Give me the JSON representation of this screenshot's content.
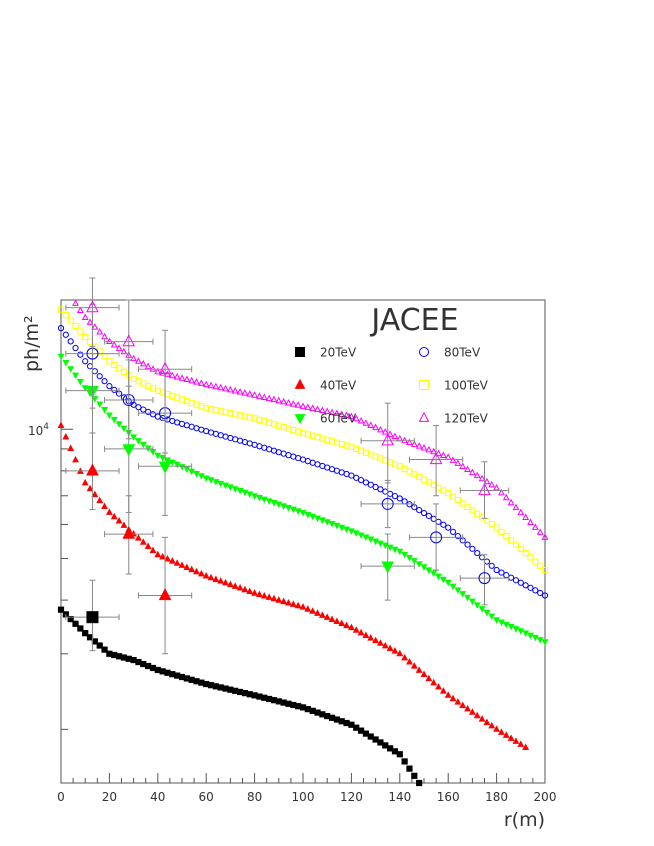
{
  "chart_data": {
    "type": "scatter",
    "title": "JACEE",
    "xlabel": "r(m)",
    "ylabel": "ph/m²",
    "xlim": [
      0,
      200
    ],
    "ylim": [
      1500,
      20000
    ],
    "yscale": "log",
    "x_ticks": [
      0,
      20,
      40,
      60,
      80,
      100,
      120,
      140,
      160,
      180,
      200
    ],
    "x_tick_labels": [
      "0",
      "20",
      "40",
      "60",
      "80",
      "100",
      "120",
      "140",
      "160",
      "180",
      "200"
    ],
    "y_tick_label": {
      "value": 10000,
      "base": "10",
      "exp": "4"
    },
    "legend_position": "top-right",
    "series": [
      {
        "name": "20TeV",
        "marker": "square-filled",
        "color": "#000000",
        "curve": {
          "x": [
            0,
            10,
            20,
            30,
            40,
            60,
            80,
            100,
            120,
            140,
            148
          ],
          "y": [
            3800,
            3350,
            3000,
            2900,
            2750,
            2550,
            2400,
            2250,
            2050,
            1750,
            1500
          ]
        },
        "measurements": [
          {
            "x": 13,
            "y": 3650,
            "xerr": 11,
            "ylo": 3050,
            "yhi": 4450
          }
        ]
      },
      {
        "name": "40TeV",
        "marker": "triangle-up-filled",
        "color": "#ff0000",
        "curve": {
          "x": [
            0,
            10,
            20,
            30,
            40,
            60,
            80,
            100,
            120,
            140,
            160,
            180,
            193
          ],
          "y": [
            10200,
            7500,
            6400,
            5700,
            5100,
            4550,
            4150,
            3850,
            3450,
            3000,
            2400,
            2000,
            1800
          ]
        },
        "measurements": [
          {
            "x": 13,
            "y": 8000,
            "xerr": 11,
            "ylo": 6500,
            "yhi": 9800
          },
          {
            "x": 28,
            "y": 5700,
            "xerr": 10,
            "ylo": 4600,
            "yhi": 7000
          },
          {
            "x": 43,
            "y": 4100,
            "xerr": 11,
            "ylo": 3000,
            "yhi": 5600
          }
        ]
      },
      {
        "name": "60TeV",
        "marker": "triangle-down-filled",
        "color": "#00ff00",
        "curve": {
          "x": [
            0,
            10,
            20,
            30,
            40,
            60,
            80,
            100,
            120,
            140,
            160,
            180,
            200
          ],
          "y": [
            14800,
            12500,
            10800,
            9600,
            8700,
            7700,
            7000,
            6400,
            5800,
            5200,
            4400,
            3600,
            3200
          ]
        },
        "measurements": [
          {
            "x": 13,
            "y": 12300,
            "xerr": 11,
            "ylo": 9800,
            "yhi": 15600
          },
          {
            "x": 28,
            "y": 9000,
            "xerr": 10,
            "ylo": 6400,
            "yhi": 12600
          },
          {
            "x": 43,
            "y": 8200,
            "xerr": 11,
            "ylo": 6300,
            "yhi": 10600
          },
          {
            "x": 135,
            "y": 4800,
            "xerr": 11,
            "ylo": 4000,
            "yhi": 5700
          }
        ]
      },
      {
        "name": "80TeV",
        "marker": "circle-open",
        "color": "#0000ff",
        "curve": {
          "x": [
            0,
            10,
            20,
            30,
            40,
            60,
            80,
            100,
            120,
            140,
            160,
            180,
            200
          ],
          "y": [
            17200,
            14400,
            12600,
            11400,
            10700,
            9900,
            9200,
            8500,
            7800,
            6900,
            5900,
            4700,
            4100
          ]
        },
        "measurements": [
          {
            "x": 13,
            "y": 15000,
            "xerr": 11,
            "ylo": 11200,
            "yhi": 19500
          },
          {
            "x": 28,
            "y": 11700,
            "xerr": 10,
            "ylo": 9500,
            "yhi": 14500
          },
          {
            "x": 43,
            "y": 10900,
            "xerr": 11,
            "ylo": 8800,
            "yhi": 13500
          },
          {
            "x": 135,
            "y": 6700,
            "xerr": 11,
            "ylo": 5900,
            "yhi": 7600
          },
          {
            "x": 155,
            "y": 5600,
            "xerr": 11,
            "ylo": 4700,
            "yhi": 6700
          },
          {
            "x": 175,
            "y": 4500,
            "xerr": 10,
            "ylo": 3900,
            "yhi": 5100
          }
        ]
      },
      {
        "name": "100TeV",
        "marker": "square-open",
        "color": "#ffff00",
        "curve": {
          "x": [
            0,
            10,
            20,
            30,
            40,
            60,
            80,
            100,
            120,
            140,
            160,
            180,
            200
          ],
          "y": [
            19000,
            16400,
            14400,
            13100,
            12300,
            11200,
            10600,
            9800,
            9100,
            8200,
            7100,
            5900,
            4700
          ]
        },
        "measurements": []
      },
      {
        "name": "120TeV",
        "marker": "triangle-up-open",
        "color": "#ff00ff",
        "curve": {
          "x": [
            0,
            10,
            20,
            30,
            40,
            60,
            80,
            100,
            120,
            140,
            160,
            180,
            200
          ],
          "y": [
            22000,
            18200,
            16000,
            14600,
            13600,
            12700,
            12000,
            11300,
            10700,
            9500,
            8600,
            7300,
            5600
          ]
        },
        "measurements": [
          {
            "x": 13,
            "y": 19200,
            "xerr": 11,
            "ylo": 15000,
            "yhi": 22500
          },
          {
            "x": 28,
            "y": 16000,
            "xerr": 10,
            "ylo": 12000,
            "yhi": 20000
          },
          {
            "x": 43,
            "y": 13800,
            "xerr": 11,
            "ylo": 10500,
            "yhi": 17000
          },
          {
            "x": 135,
            "y": 9400,
            "xerr": 11,
            "ylo": 7500,
            "yhi": 11500
          },
          {
            "x": 155,
            "y": 8500,
            "xerr": 11,
            "ylo": 7000,
            "yhi": 10200
          },
          {
            "x": 175,
            "y": 7200,
            "xerr": 10,
            "ylo": 6200,
            "yhi": 8400
          }
        ]
      }
    ]
  }
}
